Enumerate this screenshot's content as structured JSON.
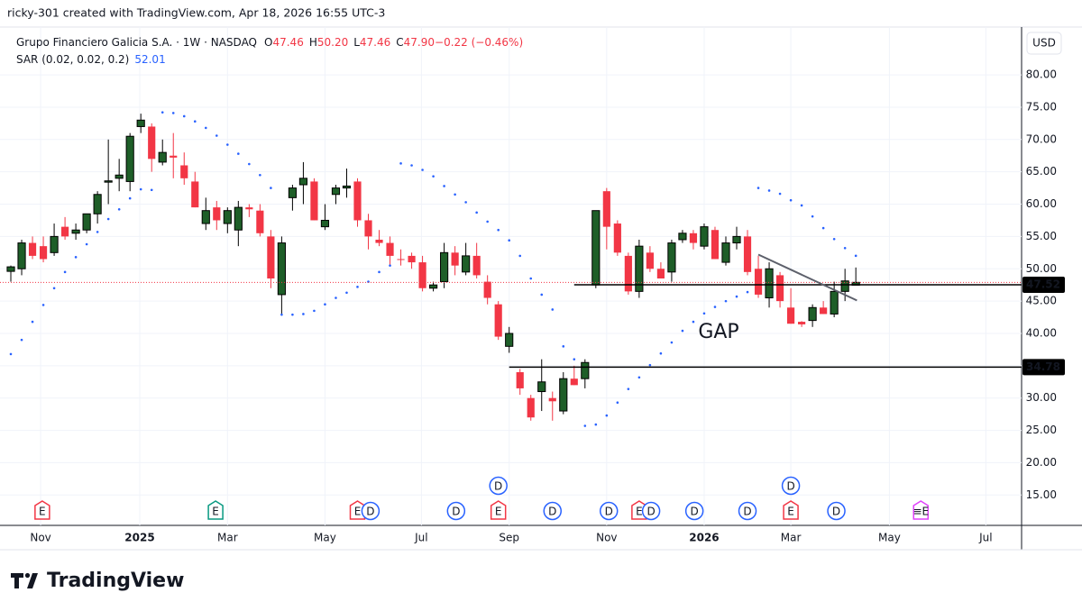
{
  "chart_data": {
    "type": "candlestick",
    "header": "ricky-301 created with TradingView.com, Apr 18, 2026 16:55 UTC-3",
    "title": "Grupo Financiero Galicia S.A. · 1W · NASDAQ",
    "legend_values": [
      {
        "label": "O",
        "value": "47.46"
      },
      {
        "label": "H",
        "value": "50.20"
      },
      {
        "label": "L",
        "value": "47.46"
      },
      {
        "label": "C",
        "value": "47.90"
      },
      {
        "label": "",
        "value": "−0.22 (−0.46%)"
      }
    ],
    "indicator": "SAR (0.02, 0.02, 0.2)",
    "indicator_value": "52.01",
    "currency": "USD",
    "brand": "TradingView",
    "annotation": "GAP",
    "up_color": "#1e5e28",
    "down_color": "#f23645",
    "sar_color": "#2962ff",
    "open": [
      49.6,
      50,
      54,
      53.5,
      52.5,
      56.5,
      55.5,
      56,
      58.5,
      63.4,
      64,
      63.5,
      72,
      72,
      66.5,
      67.5,
      66,
      63.5,
      57,
      59.5,
      57,
      56,
      59.5,
      59,
      55,
      46,
      61,
      63,
      63.5,
      56.5,
      61.5,
      62.5,
      63.5,
      57.5,
      54.5,
      54,
      51.5,
      52,
      51,
      47,
      48,
      52.5,
      49.5,
      52,
      48,
      44.5,
      38,
      34,
      30,
      31,
      30,
      28,
      33,
      33,
      47.5,
      62,
      57,
      52,
      46.5,
      52.5,
      50,
      49.5,
      54.5,
      55.5,
      53.5,
      56,
      51,
      54,
      55,
      50,
      45.5,
      49,
      44,
      41.8,
      42,
      44,
      43,
      46.5,
      47.46
    ],
    "high": [
      50.5,
      54.5,
      55,
      55,
      57,
      58,
      57,
      58.5,
      62,
      70,
      67,
      71,
      74,
      72.5,
      70,
      71,
      68,
      65,
      61,
      60.5,
      59.5,
      60.5,
      60,
      60,
      56,
      55,
      63,
      66.5,
      64,
      60,
      63,
      65.5,
      64,
      58.5,
      56,
      55,
      53,
      52.5,
      52,
      48,
      54,
      53.5,
      54,
      54,
      49,
      45,
      41,
      34.5,
      30.5,
      36,
      31,
      34,
      35,
      36,
      59,
      62.5,
      57.5,
      52.5,
      54.5,
      53.5,
      51,
      54.5,
      56,
      56,
      57,
      56.5,
      55,
      56.5,
      56,
      52,
      51,
      49.5,
      47,
      41.9,
      44.5,
      45,
      48,
      50,
      50.2
    ],
    "low": [
      48,
      49,
      51.5,
      51,
      52,
      54.5,
      54.5,
      55.5,
      57,
      60,
      62,
      62,
      71,
      65,
      66,
      64,
      63,
      59.5,
      56,
      56,
      55.5,
      53.5,
      58,
      55,
      47,
      43,
      59,
      60,
      57.5,
      56,
      60,
      61,
      56.5,
      53,
      53.5,
      50.5,
      50.5,
      50,
      46.5,
      46.5,
      47,
      49,
      49,
      48.5,
      44.5,
      39,
      37,
      30.5,
      26.5,
      28,
      26.5,
      27.5,
      32,
      31.5,
      47,
      53,
      52,
      46,
      45.5,
      49.5,
      48.5,
      48,
      54,
      53,
      53,
      51.5,
      50.5,
      53,
      49,
      45.5,
      44,
      44,
      41.5,
      41,
      41,
      43,
      42.5,
      45,
      47.46
    ],
    "close": [
      50.3,
      54,
      52,
      51.5,
      55,
      55,
      56,
      58.5,
      61.5,
      63.6,
      64.5,
      70.5,
      73,
      67,
      68,
      67.2,
      64,
      59.5,
      59,
      57.5,
      59,
      59.5,
      59.2,
      55.5,
      48.5,
      54,
      62.5,
      64,
      57.5,
      57.5,
      62.5,
      62.8,
      57.5,
      55,
      54,
      52,
      51.4,
      51,
      47,
      47.5,
      52.5,
      50.5,
      52,
      49,
      45.5,
      39.5,
      40,
      31.5,
      27,
      32.5,
      29.5,
      33,
      32,
      35.5,
      59,
      56.5,
      52.5,
      46.5,
      53.5,
      50,
      48.5,
      54,
      55.5,
      54,
      56.5,
      51.5,
      54,
      55,
      49.5,
      46,
      50,
      45,
      41.5,
      41.4,
      44,
      43,
      46.5,
      48.12,
      47.9
    ],
    "sar": [
      36.8,
      39,
      41.8,
      44.4,
      47,
      49.5,
      51.8,
      53.8,
      55.7,
      57.7,
      59.2,
      60.9,
      62.3,
      62.2,
      74.2,
      74.1,
      73.6,
      72.8,
      71.8,
      70.6,
      69.2,
      67.8,
      66.2,
      64.5,
      62.5,
      42.9,
      42.9,
      43,
      43.5,
      44.5,
      45.5,
      46.3,
      47.2,
      48,
      49.5,
      50.5,
      66.3,
      66,
      65.3,
      64.3,
      62.8,
      61.5,
      60.3,
      58.7,
      57.3,
      56,
      54.4,
      52,
      48.5,
      46,
      43.7,
      38,
      36,
      25.7,
      25.9,
      27.3,
      29.3,
      31.4,
      33.2,
      35.1,
      36.9,
      38.6,
      40.4,
      41.8,
      43.1,
      44.1,
      45,
      45.7,
      46.4,
      62.5,
      62.1,
      61.6,
      60.6,
      59.8,
      58.1,
      56.3,
      54.6,
      53.2,
      52.01
    ],
    "xlim": [
      -1,
      93.3
    ],
    "xticks": [
      {
        "value": 2.75,
        "label": "Nov"
      },
      {
        "value": 11.9,
        "label": "2025"
      },
      {
        "value": 20,
        "label": "Mar"
      },
      {
        "value": 29,
        "label": "May"
      },
      {
        "value": 37.9,
        "label": "Jul"
      },
      {
        "value": 46,
        "label": "Sep"
      },
      {
        "value": 55,
        "label": "Nov"
      },
      {
        "value": 64,
        "label": "2026"
      },
      {
        "value": 72,
        "label": "Mar"
      },
      {
        "value": 81.1,
        "label": "May"
      },
      {
        "value": 90,
        "label": "Jul"
      }
    ],
    "ylim": [
      10.3,
      87.4
    ],
    "yticks": [
      {
        "value": 15,
        "label": "15.00"
      },
      {
        "value": 20,
        "label": "20.00"
      },
      {
        "value": 25,
        "label": "25.00"
      },
      {
        "value": 30,
        "label": "30.00"
      },
      {
        "value": 35,
        "label": "35.00"
      },
      {
        "value": 40,
        "label": "40.00"
      },
      {
        "value": 45,
        "label": "45.00"
      },
      {
        "value": 50,
        "label": "50.00"
      },
      {
        "value": 55,
        "label": "55.00"
      },
      {
        "value": 60,
        "label": "60.00"
      },
      {
        "value": 65,
        "label": "65.00"
      },
      {
        "value": 70,
        "label": "70.00"
      },
      {
        "value": 75,
        "label": "75.00"
      },
      {
        "value": 80,
        "label": "80.00"
      }
    ],
    "grid": true,
    "price_lines": [
      {
        "value": 47.52,
        "start": 52
      },
      {
        "value": 34.78,
        "start": 46
      }
    ],
    "trendline": {
      "start": [
        69,
        52.2
      ],
      "end": [
        78.1,
        45.1
      ],
      "color": "#5d606b"
    },
    "events": [
      {
        "label": "E",
        "index": 2.9,
        "color": "#f23645"
      },
      {
        "label": "E",
        "index": 18.9,
        "color": "#089981"
      },
      {
        "label": "E",
        "index": 32,
        "color": "#f23645"
      },
      {
        "label": "D",
        "index": 33.2,
        "color": "#2962ff"
      },
      {
        "label": "D",
        "index": 41.1,
        "color": "#2962ff"
      },
      {
        "label": "E",
        "index": 45,
        "color": "#f23645"
      },
      {
        "label": "D",
        "index": 45,
        "color": "#2962ff"
      },
      {
        "label": "D",
        "index": 50,
        "color": "#2962ff"
      },
      {
        "label": "D",
        "index": 55.2,
        "color": "#2962ff"
      },
      {
        "label": "E",
        "index": 58,
        "color": "#f23645"
      },
      {
        "label": "D",
        "index": 59.1,
        "color": "#2962ff"
      },
      {
        "label": "D",
        "index": 63.1,
        "color": "#2962ff"
      },
      {
        "label": "D",
        "index": 68,
        "color": "#2962ff"
      },
      {
        "label": "E",
        "index": 72,
        "color": "#f23645"
      },
      {
        "label": "D",
        "index": 72,
        "color": "#2962ff"
      },
      {
        "label": "D",
        "index": 76.2,
        "color": "#2962ff"
      },
      {
        "label": "≡E",
        "index": 84,
        "color": "#e040fb"
      }
    ]
  }
}
